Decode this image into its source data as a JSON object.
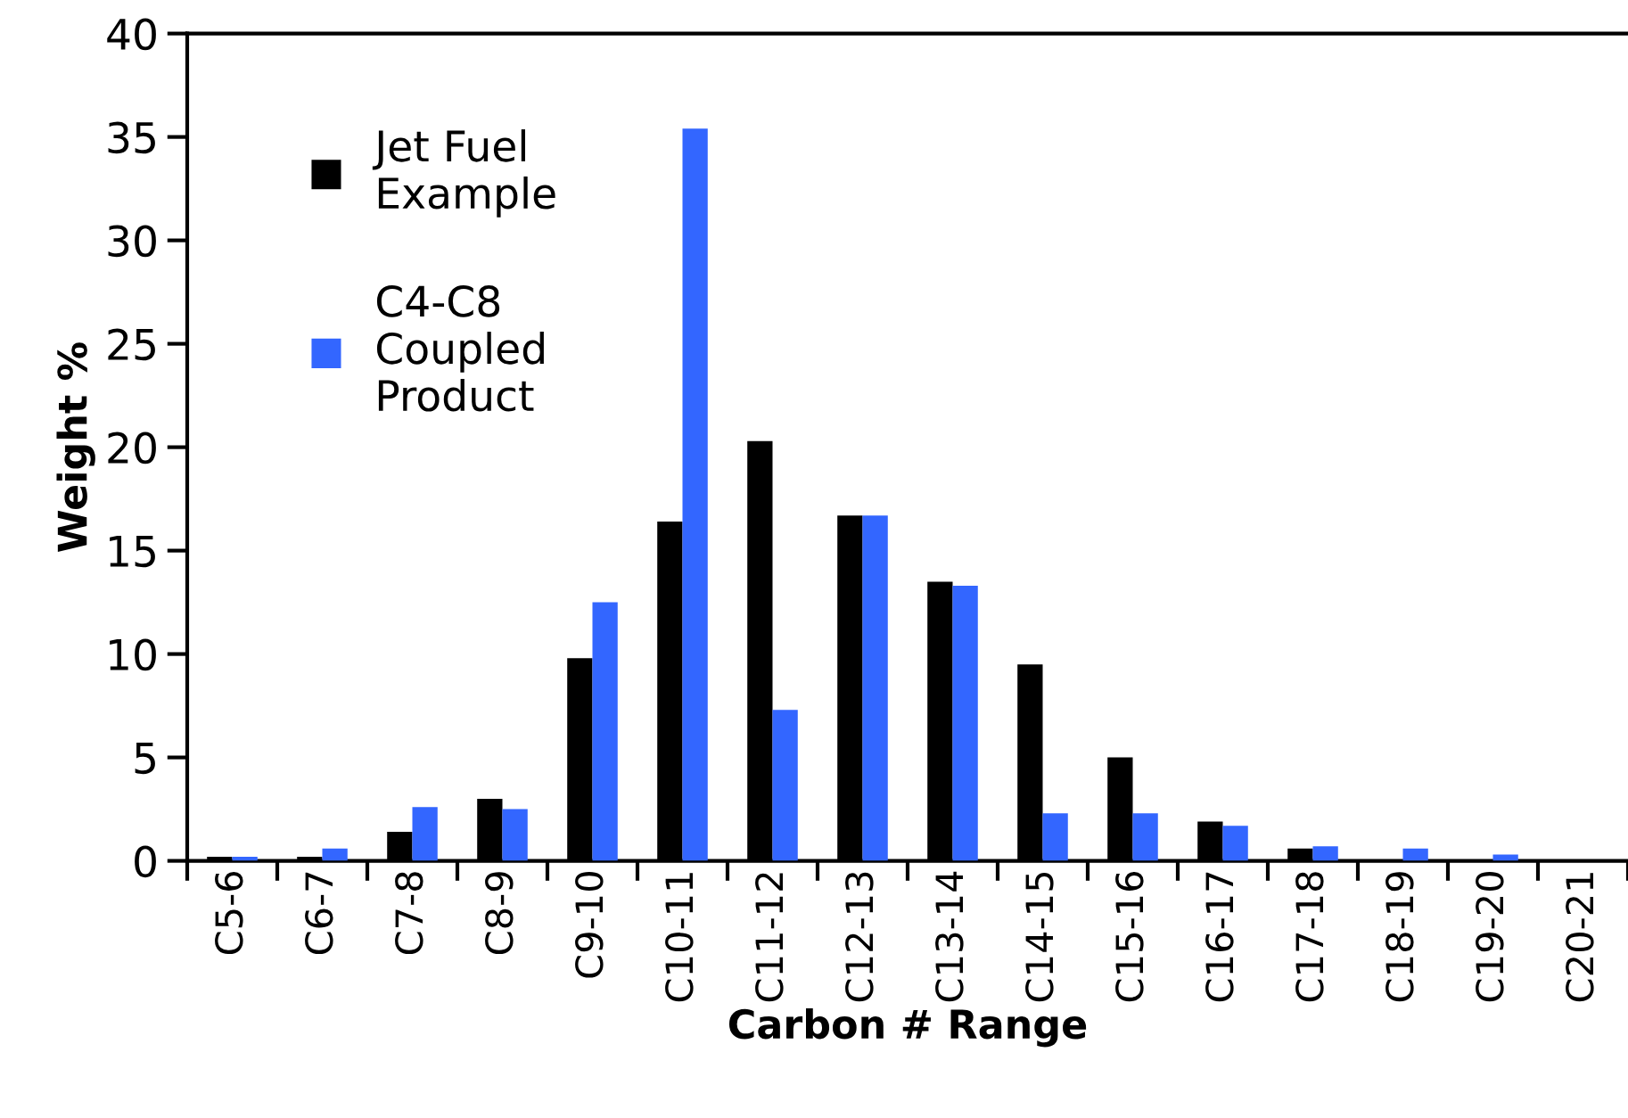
{
  "chart_data": {
    "type": "bar",
    "xlabel": "Carbon # Range",
    "ylabel": "Weight %",
    "categories": [
      "C5-6",
      "C6-7",
      "C7-8",
      "C8-9",
      "C9-10",
      "C10-11",
      "C11-12",
      "C12-13",
      "C13-14",
      "C14-15",
      "C15-16",
      "C16-17",
      "C17-18",
      "C18-19",
      "C19-20",
      "C20-21"
    ],
    "series": [
      {
        "name": "Jet Fuel\nExample",
        "color": "#000000",
        "values": [
          0.2,
          0.2,
          1.4,
          3.0,
          9.8,
          16.4,
          20.3,
          16.7,
          13.5,
          9.5,
          5.0,
          1.9,
          0.6,
          0,
          0,
          0
        ]
      },
      {
        "name": "C4-C8\nCoupled\nProduct",
        "color": "#3366ff",
        "values": [
          0.2,
          0.6,
          2.6,
          2.5,
          12.5,
          35.4,
          7.3,
          16.7,
          13.3,
          2.3,
          2.3,
          1.7,
          0.7,
          0.6,
          0.3,
          0
        ]
      }
    ],
    "ylim": [
      0,
      40
    ],
    "yticks": [
      0,
      5,
      10,
      15,
      20,
      25,
      30,
      35,
      40
    ],
    "grid": false,
    "legend": "top left"
  }
}
